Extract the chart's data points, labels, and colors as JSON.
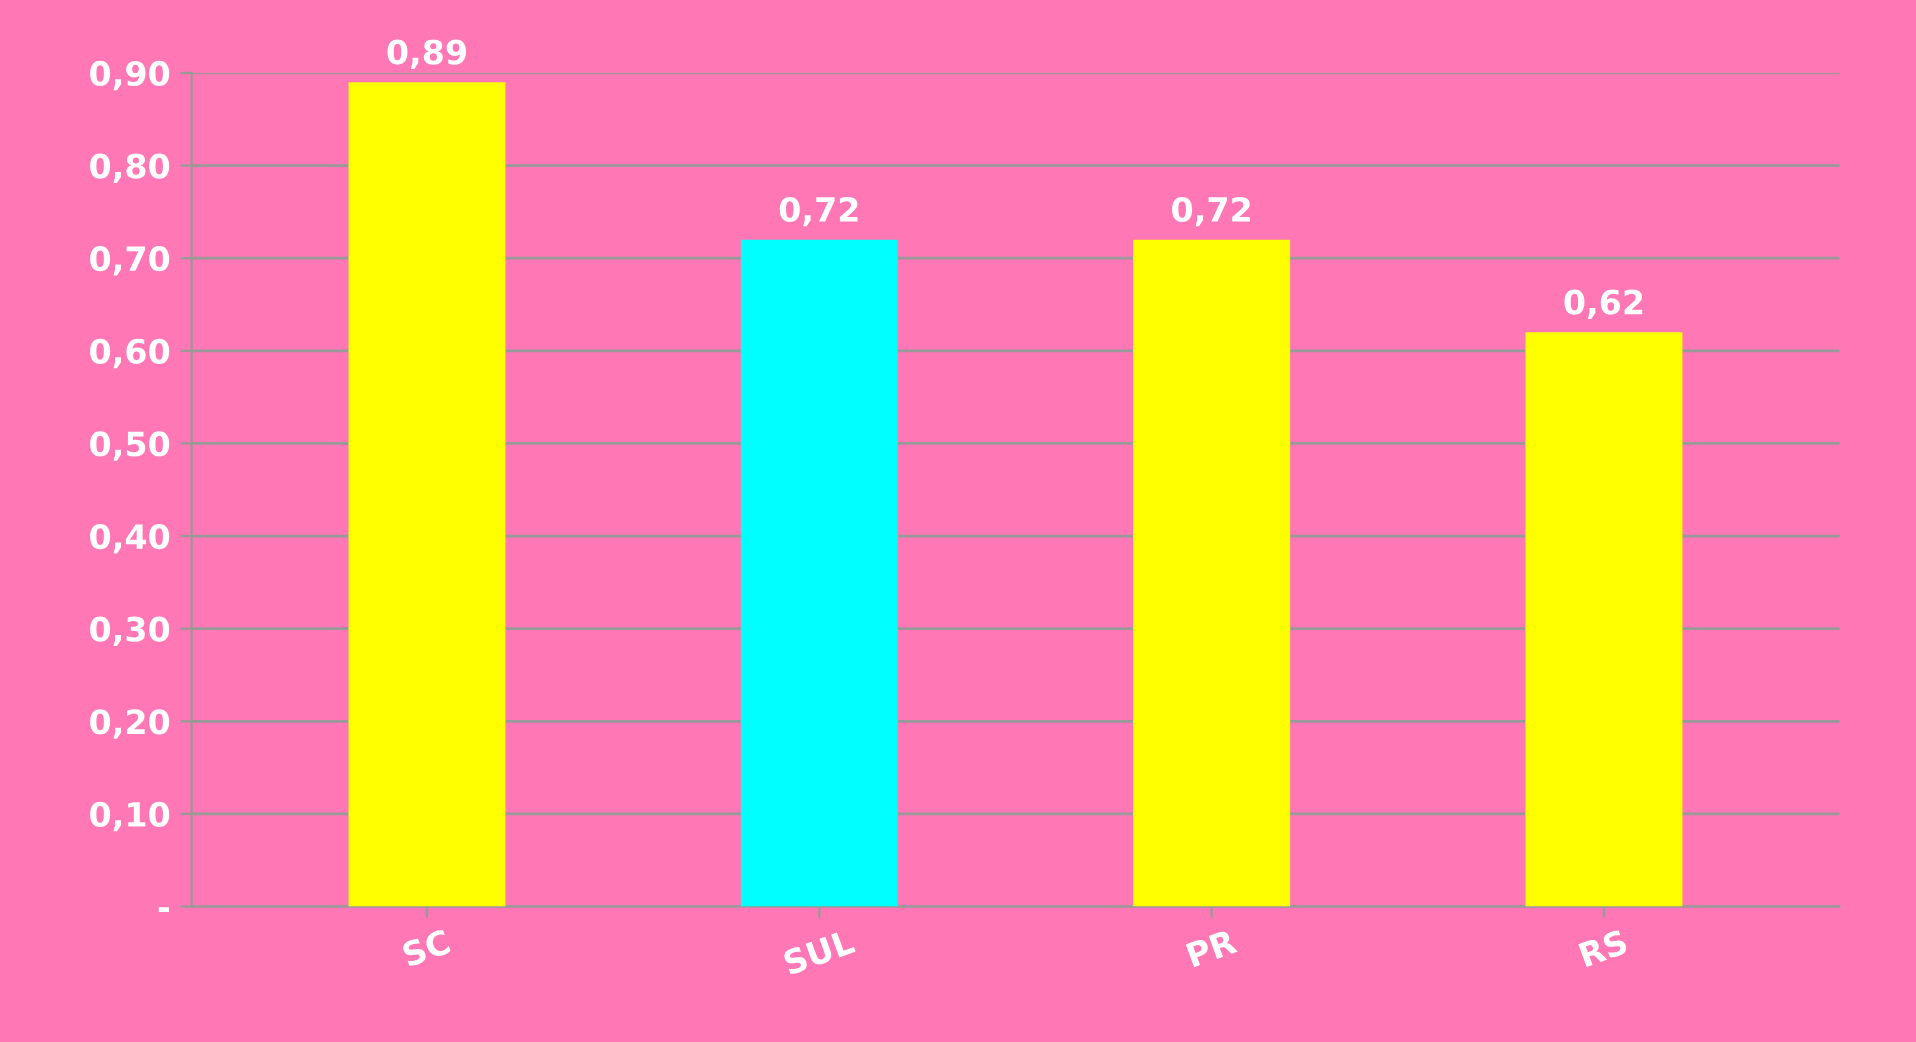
{
  "chart_data": {
    "type": "bar",
    "categories": [
      "SC",
      "SUL",
      "PR",
      "RS"
    ],
    "values": [
      0.89,
      0.72,
      0.72,
      0.62
    ],
    "colors": [
      "#ffff00",
      "#00ffff",
      "#ffff00",
      "#ffff00"
    ],
    "value_labels": [
      "0,89",
      "0,72",
      "0,72",
      "0,62"
    ],
    "ylim": [
      0,
      0.9
    ],
    "yticks": [
      {
        "value": 0,
        "label": "-"
      },
      {
        "value": 0.1,
        "label": "0,10"
      },
      {
        "value": 0.2,
        "label": "0,20"
      },
      {
        "value": 0.3,
        "label": "0,30"
      },
      {
        "value": 0.4,
        "label": "0,40"
      },
      {
        "value": 0.5,
        "label": "0,50"
      },
      {
        "value": 0.6,
        "label": "0,60"
      },
      {
        "value": 0.7,
        "label": "0,70"
      },
      {
        "value": 0.8,
        "label": "0,80"
      },
      {
        "value": 0.9,
        "label": "0,90"
      }
    ],
    "grid": "y",
    "legend": false
  }
}
